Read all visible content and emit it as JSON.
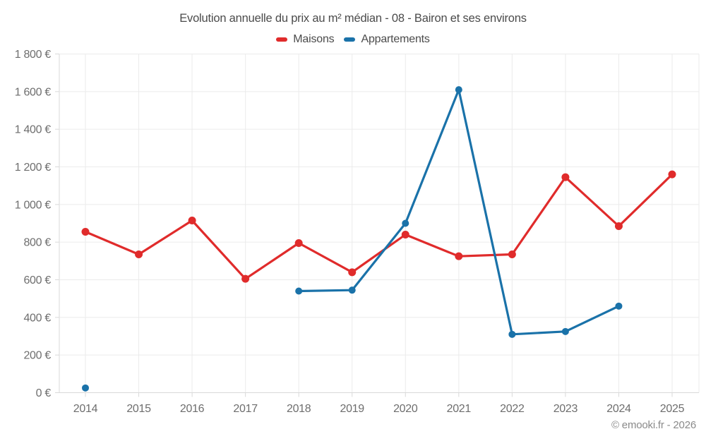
{
  "header": {
    "title": "Evolution annuelle du prix au m² médian - 08 - Bairon et ses environs"
  },
  "footer": {
    "credit": "© emooki.fr - 2026"
  },
  "chart_data": {
    "type": "line",
    "title": "Evolution annuelle du prix au m² médian - 08 - Bairon et ses environs",
    "categories": [
      "2014",
      "2015",
      "2016",
      "2017",
      "2018",
      "2019",
      "2020",
      "2021",
      "2022",
      "2023",
      "2024",
      "2025"
    ],
    "series": [
      {
        "name": "Maisons",
        "color": "#e02b2b",
        "values": [
          855,
          735,
          915,
          605,
          795,
          640,
          840,
          725,
          735,
          1145,
          885,
          1160
        ]
      },
      {
        "name": "Appartements",
        "color": "#1a72a9",
        "values": [
          25,
          null,
          null,
          null,
          540,
          545,
          900,
          1610,
          310,
          325,
          460,
          null
        ]
      }
    ],
    "ylim": [
      0,
      1800
    ],
    "ytick_step": 200,
    "ytick_labels": [
      "0 €",
      "200 €",
      "400 €",
      "600 €",
      "800 €",
      "1 000 €",
      "1 200 €",
      "1 400 €",
      "1 600 €",
      "1 800 €"
    ],
    "xlabel": "",
    "ylabel": "",
    "grid": true,
    "legend_position": "top",
    "colors": {
      "grid": "#ebebeb",
      "axis": "#d9d9d9",
      "axis_text": "#6e6e6e"
    }
  }
}
